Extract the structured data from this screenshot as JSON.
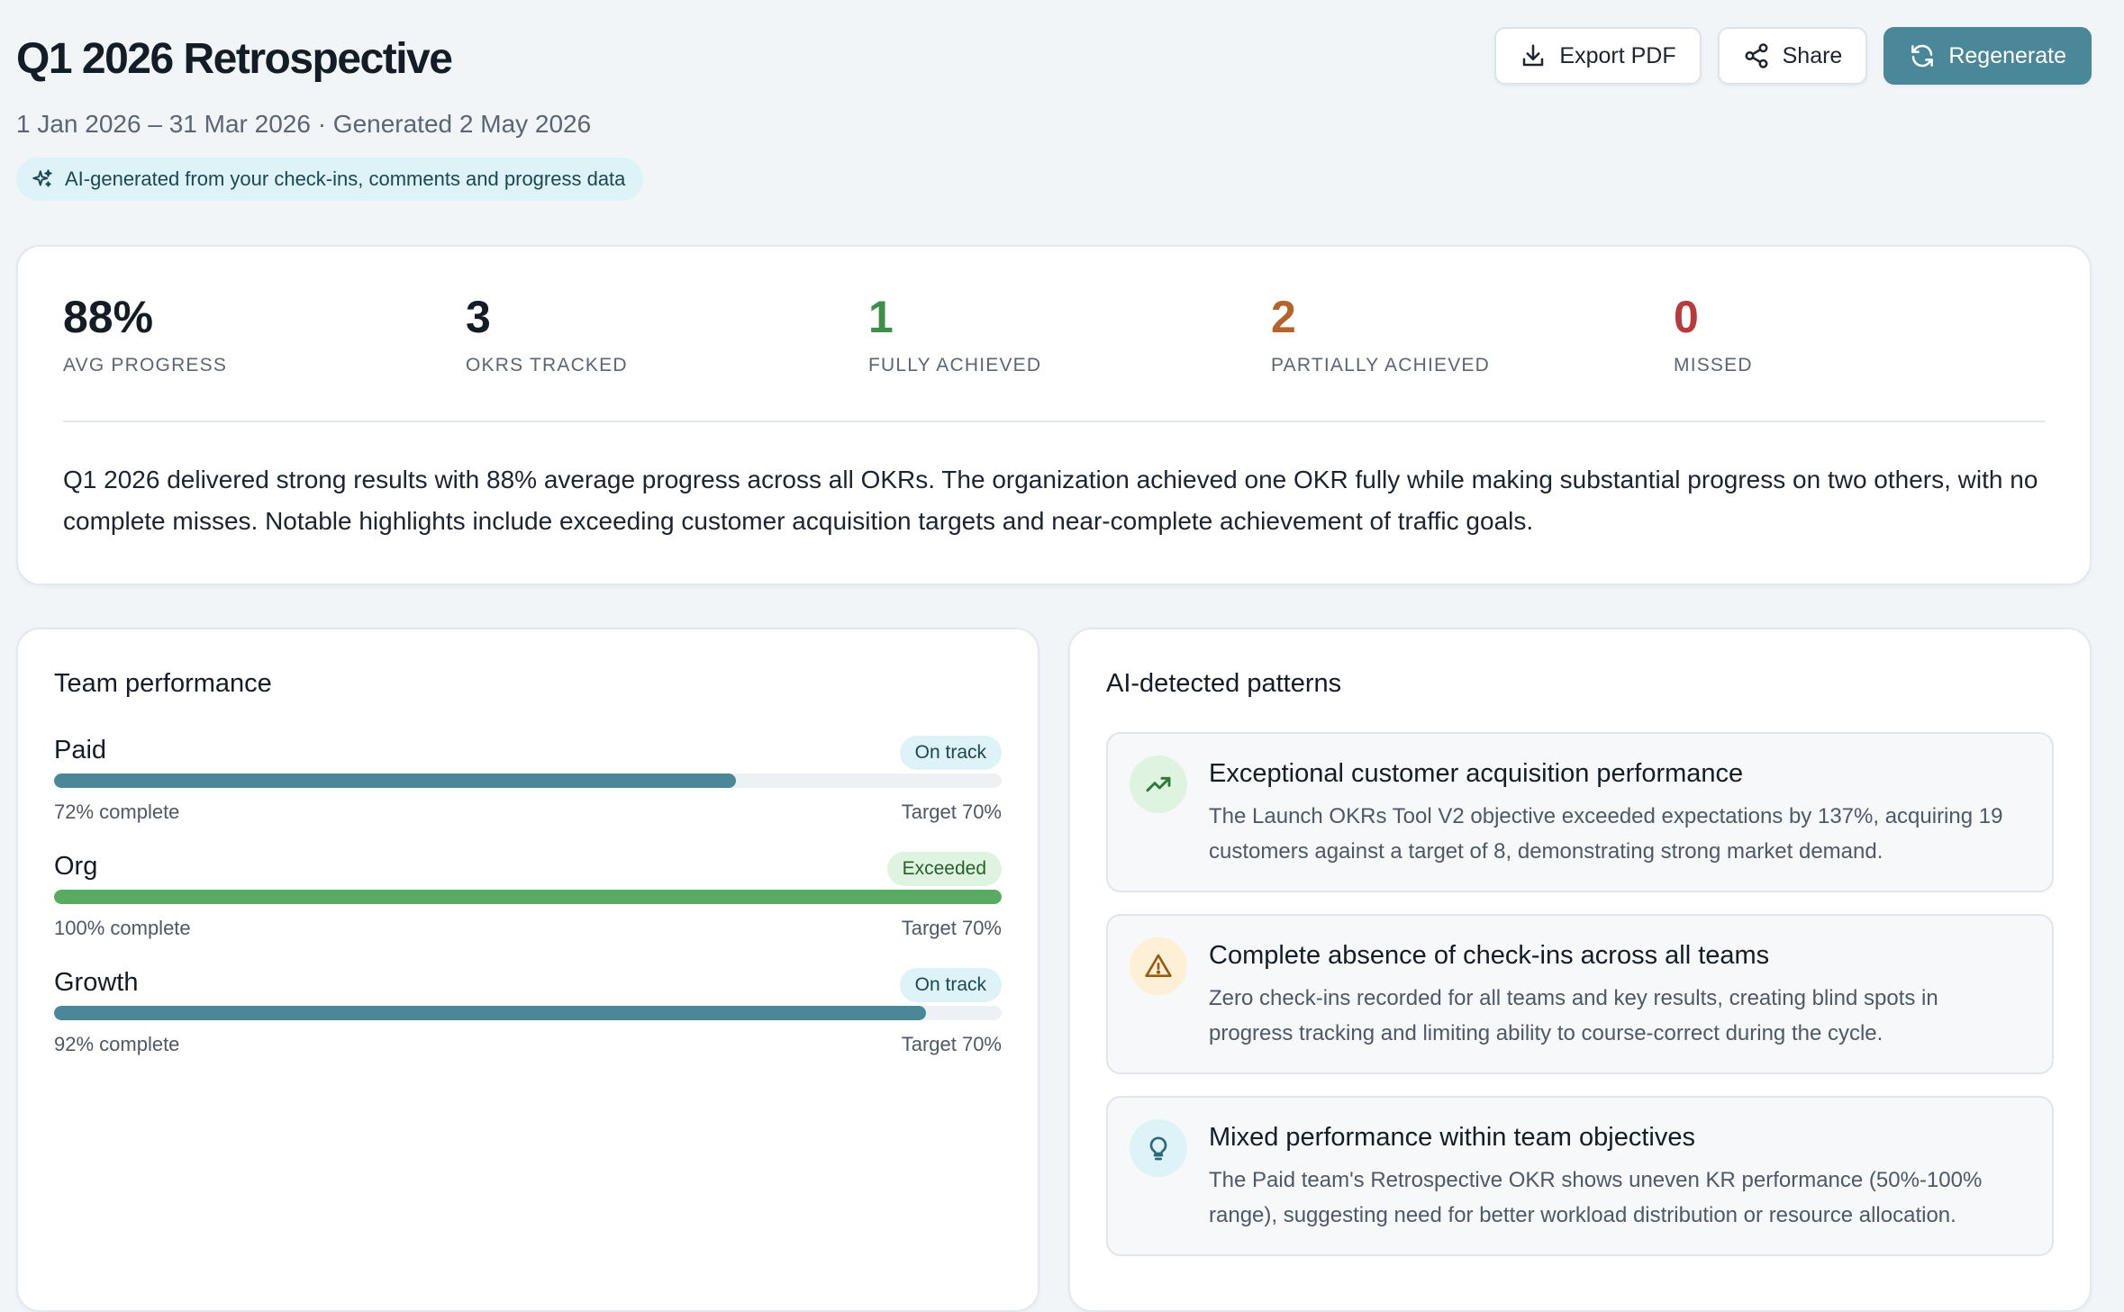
{
  "header": {
    "title": "Q1 2026 Retrospective",
    "subtitle": "1 Jan 2026 – 31 Mar 2026 · Generated 2 May 2026",
    "ai_note": "AI-generated from your check-ins, comments and progress data",
    "ai_icon": "sparkles-icon",
    "actions": {
      "export_label": "Export PDF",
      "export_icon": "download-icon",
      "share_label": "Share",
      "share_icon": "share-icon",
      "regenerate_label": "Regenerate",
      "regenerate_icon": "refresh-icon"
    }
  },
  "summary": {
    "stats": [
      {
        "value": "88%",
        "label": "Avg progress",
        "color": "#141c26"
      },
      {
        "value": "3",
        "label": "OKRs tracked",
        "color": "#141c26"
      },
      {
        "value": "1",
        "label": "Fully achieved",
        "color": "#3f8f4b"
      },
      {
        "value": "2",
        "label": "Partially achieved",
        "color": "#b5622c"
      },
      {
        "value": "0",
        "label": "Missed",
        "color": "#b83a3a"
      }
    ],
    "text": "Q1 2026 delivered strong results with 88% average progress across all OKRs. The organization achieved one OKR fully while making substantial progress on two others, with no complete misses. Notable highlights include exceeding customer acquisition targets and near-complete achievement of traffic goals."
  },
  "team_performance": {
    "title": "Team performance",
    "teams": [
      {
        "name": "Paid",
        "status": "On track",
        "progress": 72,
        "complete_label": "72% complete",
        "target_label": "Target 70%",
        "bar_color": "#4a8799",
        "badge_bg": "#ddf3f7",
        "badge_fg": "#1c4754"
      },
      {
        "name": "Org",
        "status": "Exceeded",
        "progress": 100,
        "complete_label": "100% complete",
        "target_label": "Target 70%",
        "bar_color": "#5aab62",
        "badge_bg": "#dff3e1",
        "badge_fg": "#25602d"
      },
      {
        "name": "Growth",
        "status": "On track",
        "progress": 92,
        "complete_label": "92% complete",
        "target_label": "Target 70%",
        "bar_color": "#4a8799",
        "badge_bg": "#ddf3f7",
        "badge_fg": "#1c4754"
      }
    ]
  },
  "patterns": {
    "title": "AI-detected patterns",
    "items": [
      {
        "icon": "trending-up-icon",
        "icon_bg": "#dff3e1",
        "icon_color": "#2f7a3a",
        "title": "Exceptional customer acquisition performance",
        "text": "The Launch OKRs Tool V2 objective exceeded expectations by 137%, acquiring 19 customers against a target of 8, demonstrating strong market demand."
      },
      {
        "icon": "warning-icon",
        "icon_bg": "#fdf0d6",
        "icon_color": "#9a5a12",
        "title": "Complete absence of check-ins across all teams",
        "text": "Zero check-ins recorded for all teams and key results, creating blind spots in progress tracking and limiting ability to course-correct during the cycle."
      },
      {
        "icon": "lightbulb-icon",
        "icon_bg": "#ddf3f7",
        "icon_color": "#2c6878",
        "title": "Mixed performance within team objectives",
        "text": "The Paid team's Retrospective OKR shows uneven KR performance (50%-100% range), suggesting need for better workload distribution or resource allocation."
      }
    ]
  }
}
